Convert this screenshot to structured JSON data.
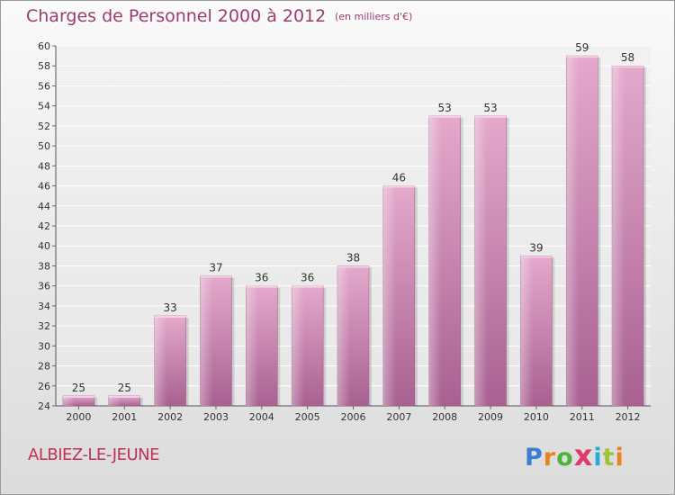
{
  "chart_data": {
    "type": "bar",
    "title": "Charges de Personnel 2000 à 2012",
    "subtitle": "(en milliers d'€)",
    "categories": [
      "2000",
      "2001",
      "2002",
      "2003",
      "2004",
      "2005",
      "2006",
      "2007",
      "2008",
      "2009",
      "2010",
      "2011",
      "2012"
    ],
    "values": [
      25,
      25,
      33,
      37,
      36,
      36,
      38,
      46,
      53,
      53,
      39,
      59,
      58
    ],
    "ylim": [
      24,
      60
    ],
    "yticks": [
      24,
      26,
      28,
      30,
      32,
      34,
      36,
      38,
      40,
      42,
      44,
      46,
      48,
      50,
      52,
      54,
      56,
      58,
      60
    ],
    "grid": true,
    "bar_color": "#c87aa5"
  },
  "commune": "ALBIEZ-LE-JEUNE",
  "brand": {
    "text": "Proxiti",
    "colors": [
      "#3a7fd0",
      "#e8831f",
      "#4fb33a",
      "#e03a6a",
      "#2aa8d8",
      "#9bc43a",
      "#e8831f"
    ]
  }
}
